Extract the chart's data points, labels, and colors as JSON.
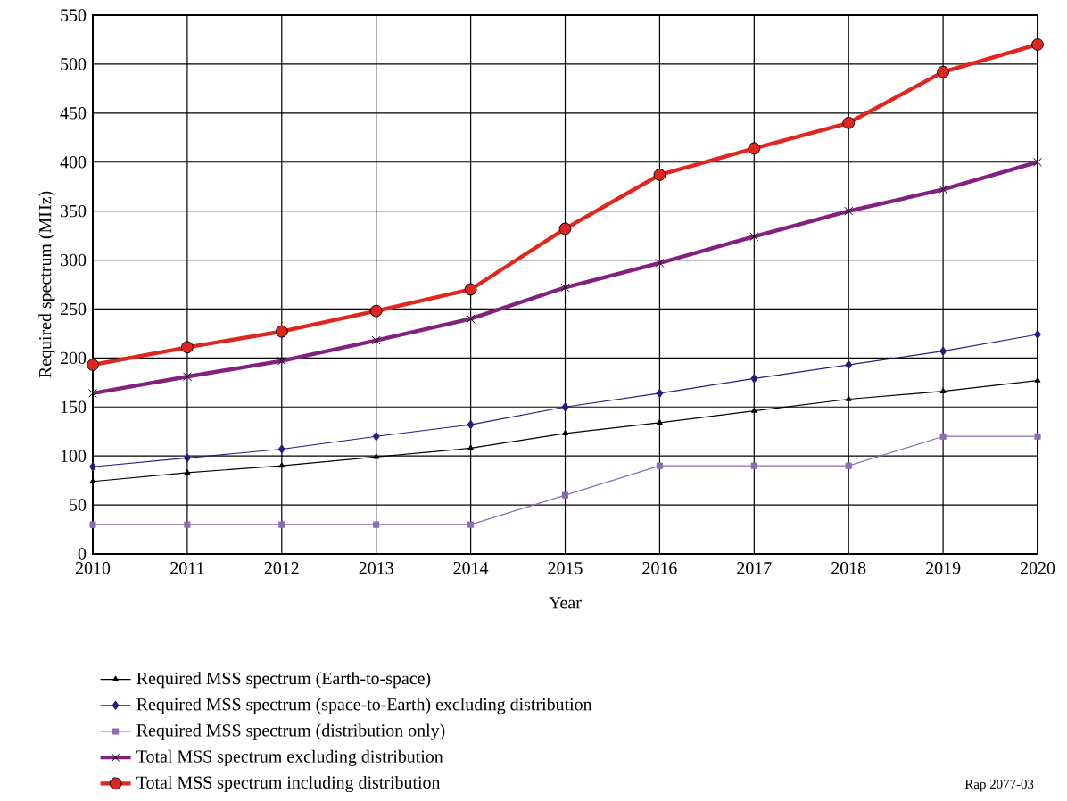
{
  "chart_data": {
    "type": "line",
    "xlabel": "Year",
    "ylabel": "Required spectrum (MHz)",
    "x": [
      2010,
      2011,
      2012,
      2013,
      2014,
      2015,
      2016,
      2017,
      2018,
      2019,
      2020
    ],
    "xlim": [
      2010,
      2020
    ],
    "xticks": [
      2010,
      2011,
      2012,
      2013,
      2014,
      2015,
      2016,
      2017,
      2018,
      2019,
      2020
    ],
    "ylim": [
      0,
      550
    ],
    "yticks": [
      0,
      50,
      100,
      150,
      200,
      250,
      300,
      350,
      400,
      450,
      500,
      550
    ],
    "grid": true,
    "legend": "bottom",
    "series": [
      {
        "name": "Required MSS spectrum (Earth-to-space)",
        "color": "#000000",
        "marker": "triangle",
        "values": [
          74,
          83,
          90,
          99,
          108,
          123,
          134,
          146,
          158,
          166,
          177
        ]
      },
      {
        "name": "Required MSS spectrum (space-to-Earth) excluding distribution",
        "color": "#2b1a7f",
        "marker": "diamond",
        "values": [
          89,
          98,
          107,
          120,
          132,
          150,
          164,
          179,
          193,
          207,
          224
        ]
      },
      {
        "name": "Required MSS spectrum (distribution only)",
        "color": "#8e6bb5",
        "marker": "square",
        "values": [
          30,
          30,
          30,
          30,
          30,
          60,
          90,
          90,
          90,
          120,
          120
        ]
      },
      {
        "name": "Total MSS spectrum excluding distribution",
        "color": "#82217f",
        "marker": "cross",
        "values": [
          164,
          181,
          197,
          218,
          240,
          272,
          297,
          324,
          350,
          372,
          400
        ]
      },
      {
        "name": "Total MSS spectrum including distribution",
        "color": "#e0261f",
        "marker": "circle",
        "values": [
          193,
          211,
          227,
          248,
          270,
          332,
          387,
          414,
          440,
          492,
          520
        ]
      }
    ],
    "annotations": [
      "Rap 2077-03"
    ]
  }
}
